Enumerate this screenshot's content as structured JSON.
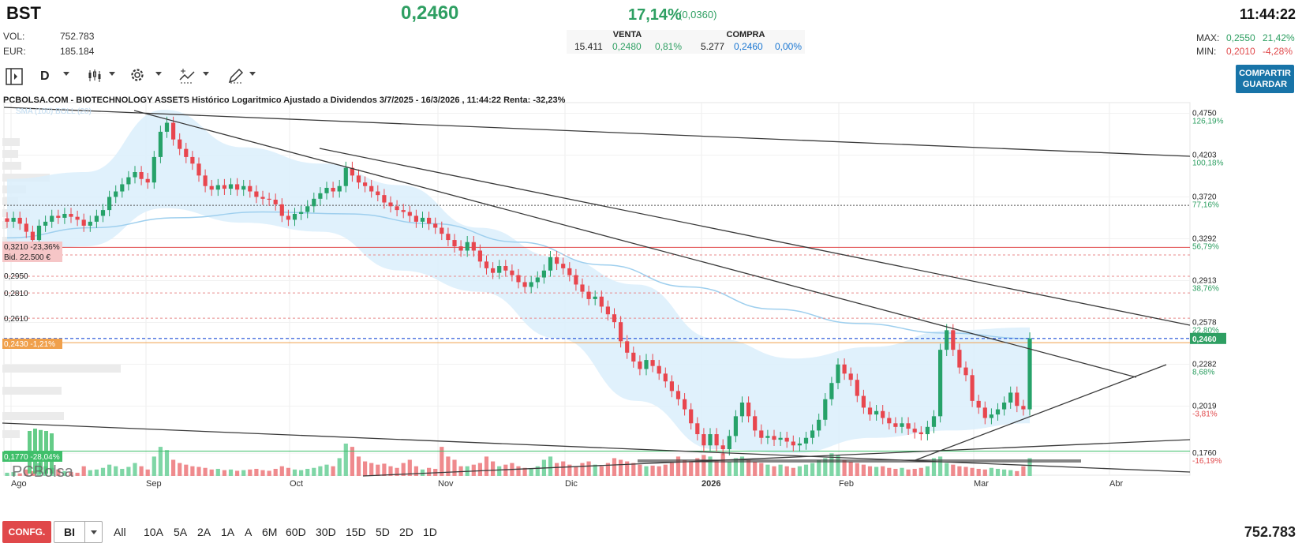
{
  "header": {
    "ticker": "BST",
    "last": "0,2460",
    "change_pct": "17,14%",
    "change_abs": "(0,0360)",
    "time": "11:44:22",
    "vol_label": "VOL:",
    "vol_value": "752.783",
    "eur_label": "EUR:",
    "eur_value": "185.184",
    "venta_label": "VENTA",
    "venta_qty": "15.411",
    "venta_price": "0,2480",
    "venta_pct": "0,81%",
    "compra_label": "COMPRA",
    "compra_qty": "5.277",
    "compra_price": "0,2460",
    "compra_pct": "0,00%",
    "max_label": "MAX:",
    "max_value": "0,2550",
    "max_pct": "21,42%",
    "min_label": "MIN:",
    "min_value": "0,2010",
    "min_pct": "-4,28%"
  },
  "toolbar": {
    "period": "D",
    "share_label_1": "COMPARTIR",
    "share_label_2": "GUARDAR",
    "icons": [
      "panel-toggle-icon",
      "candles-icon",
      "gear-icon",
      "indicator-icon",
      "pencil-icon"
    ]
  },
  "colors": {
    "up": "#26a269",
    "down": "#e8464e",
    "accent": "#1874a8",
    "band": "#dbeefb"
  },
  "chart_data": {
    "type": "candlestick",
    "title": "PCBOLSA.COM - BIOTECHNOLOGY ASSETS Histórico Logaritmico Ajustado a Dividendos 3/7/2025 - 16/3/2026 , 11:44:22 Renta: -32,23%",
    "legend_text": "SMA (100) BOLL (20)",
    "yscale": "log",
    "ylim": [
      0.165,
      0.49
    ],
    "x_ticks": [
      "Ago",
      "Sep",
      "Oct",
      "Nov",
      "Dic",
      "2026",
      "Feb",
      "Mar",
      "Abr"
    ],
    "right_labels": [
      {
        "price": "0,4750",
        "pct": "126,19%"
      },
      {
        "price": "0,4203",
        "pct": "100,18%"
      },
      {
        "price": "0,3720",
        "pct": "77,16%"
      },
      {
        "price": "0,3292",
        "pct": "56,79%"
      },
      {
        "price": "0,2913",
        "pct": "38,76%"
      },
      {
        "price": "0,2578",
        "pct": "22,80%"
      },
      {
        "price": "0,2282",
        "pct": "8,68%"
      },
      {
        "price": "0,2019",
        "pct": "-3,81%"
      },
      {
        "price": "0,1760",
        "pct": "-16,19%"
      }
    ],
    "last_price_label": "0,2460",
    "left_labels": [
      {
        "text": "0,3210  -23,36%"
      },
      {
        "text": "Bid. 22.500 €"
      },
      {
        "text": "0,2950"
      },
      {
        "text": "0,2810"
      },
      {
        "text": "0,2610"
      },
      {
        "text": "0,2430  -1,21%"
      },
      {
        "text": "0,1770  -28,04%"
      }
    ],
    "watermark": "PCBolsa",
    "closes": [
      0.346,
      0.35,
      0.344,
      0.336,
      0.328,
      0.342,
      0.346,
      0.352,
      0.35,
      0.354,
      0.351,
      0.348,
      0.342,
      0.346,
      0.352,
      0.358,
      0.372,
      0.378,
      0.386,
      0.394,
      0.4,
      0.392,
      0.388,
      0.418,
      0.45,
      0.462,
      0.44,
      0.428,
      0.418,
      0.41,
      0.396,
      0.384,
      0.38,
      0.385,
      0.381,
      0.386,
      0.38,
      0.384,
      0.378,
      0.372,
      0.37,
      0.369,
      0.364,
      0.352,
      0.348,
      0.354,
      0.356,
      0.362,
      0.37,
      0.376,
      0.382,
      0.378,
      0.384,
      0.405,
      0.396,
      0.388,
      0.384,
      0.378,
      0.374,
      0.366,
      0.362,
      0.358,
      0.356,
      0.352,
      0.346,
      0.35,
      0.344,
      0.34,
      0.334,
      0.328,
      0.322,
      0.318,
      0.326,
      0.318,
      0.308,
      0.302,
      0.298,
      0.304,
      0.3,
      0.296,
      0.29,
      0.286,
      0.29,
      0.294,
      0.3,
      0.312,
      0.306,
      0.302,
      0.296,
      0.288,
      0.282,
      0.276,
      0.278,
      0.27,
      0.264,
      0.258,
      0.244,
      0.236,
      0.23,
      0.225,
      0.231,
      0.227,
      0.222,
      0.217,
      0.211,
      0.206,
      0.2,
      0.192,
      0.186,
      0.18,
      0.186,
      0.18,
      0.178,
      0.185,
      0.196,
      0.204,
      0.196,
      0.188,
      0.184,
      0.185,
      0.183,
      0.184,
      0.182,
      0.18,
      0.181,
      0.184,
      0.188,
      0.194,
      0.206,
      0.216,
      0.228,
      0.222,
      0.218,
      0.208,
      0.201,
      0.197,
      0.199,
      0.195,
      0.192,
      0.19,
      0.192,
      0.189,
      0.187,
      0.186,
      0.19,
      0.196,
      0.238,
      0.252,
      0.238,
      0.226,
      0.221,
      0.205,
      0.201,
      0.195,
      0.197,
      0.2,
      0.204,
      0.21,
      0.202,
      0.2,
      0.246
    ],
    "sma100": [
      0.33,
      0.34,
      0.35,
      0.356,
      0.354,
      0.344,
      0.326,
      0.305,
      0.286,
      0.268,
      0.257,
      0.25,
      0.246
    ],
    "boll_upper": [
      0.392,
      0.4,
      0.48,
      0.43,
      0.41,
      0.385,
      0.34,
      0.312,
      0.288,
      0.246,
      0.232,
      0.24,
      0.252,
      0.254
    ],
    "boll_lower": [
      0.312,
      0.322,
      0.36,
      0.345,
      0.336,
      0.3,
      0.282,
      0.246,
      0.205,
      0.178,
      0.176,
      0.184,
      0.188,
      0.192
    ],
    "volumes": [
      0.1,
      0.12,
      0.08,
      0.2,
      0.15,
      0.4,
      0.3,
      0.25,
      0.2,
      0.15,
      0.12,
      0.1,
      0.3,
      0.18,
      0.2,
      0.25,
      0.35,
      0.3,
      0.22,
      0.28,
      0.4,
      0.3,
      0.2,
      0.6,
      0.9,
      0.8,
      0.5,
      0.4,
      0.35,
      0.3,
      0.28,
      0.25,
      0.2,
      0.22,
      0.18,
      0.2,
      0.16,
      0.18,
      0.2,
      0.22,
      0.18,
      0.16,
      0.22,
      0.3,
      0.25,
      0.2,
      0.18,
      0.22,
      0.25,
      0.3,
      0.35,
      0.3,
      0.55,
      1.0,
      0.9,
      0.6,
      0.45,
      0.4,
      0.35,
      0.38,
      0.3,
      0.25,
      0.4,
      0.5,
      0.3,
      0.2,
      0.25,
      0.22,
      0.9,
      0.6,
      0.5,
      0.3,
      0.3,
      0.35,
      0.4,
      0.6,
      0.45,
      0.3,
      0.35,
      0.4,
      0.3,
      0.25,
      0.22,
      0.3,
      0.5,
      0.6,
      0.4,
      0.45,
      0.35,
      0.3,
      0.4,
      0.45,
      0.35,
      0.3,
      0.4,
      0.55,
      0.5,
      0.45,
      0.4,
      0.35,
      0.3,
      0.32,
      0.3,
      0.35,
      0.4,
      0.6,
      0.5,
      0.45,
      0.55,
      0.65,
      0.6,
      0.5,
      0.7,
      0.45,
      0.55,
      0.6,
      0.5,
      0.45,
      0.4,
      0.35,
      0.3,
      0.35,
      0.3,
      0.25,
      0.3,
      0.35,
      0.4,
      0.5,
      0.55,
      0.7,
      0.65,
      0.5,
      0.45,
      0.4,
      0.35,
      0.3,
      0.28,
      0.3,
      0.25,
      0.22,
      0.25,
      0.2,
      0.22,
      0.25,
      0.3,
      0.55,
      0.6,
      0.4,
      0.35,
      0.3,
      0.28,
      0.25,
      0.22,
      0.2,
      0.25,
      0.22,
      0.2,
      0.18,
      0.15,
      0.3,
      0.55
    ]
  },
  "bottom": {
    "config_label": "CONFG.",
    "select_value": "BI",
    "ranges": [
      "All",
      "10A",
      "5A",
      "2A",
      "1A",
      "A",
      "6M",
      "60D",
      "30D",
      "15D",
      "5D",
      "2D",
      "1D"
    ],
    "volume_total": "752.783"
  }
}
